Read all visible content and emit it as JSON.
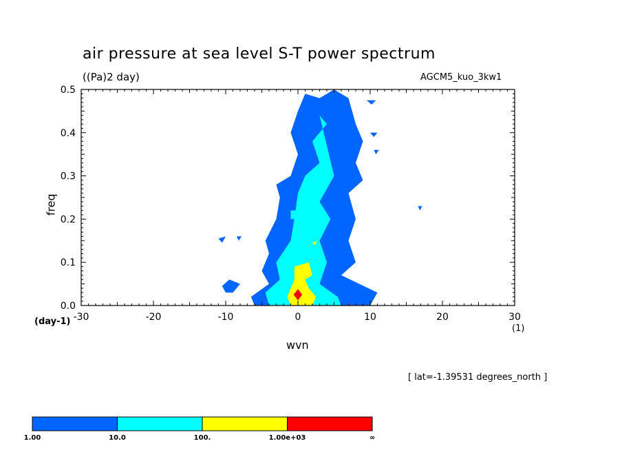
{
  "chart_data": {
    "type": "heatmap",
    "title": "air pressure at sea level S-T power spectrum",
    "subtitle": "((Pa)2 day)",
    "model_label": "AGCM5_kuo_3kw1",
    "xlabel": "wvn",
    "ylabel": "freq",
    "x_unit": "(1)",
    "y_unit": "(day-1)",
    "annotation": "[ lat=-1.39531 degrees_north ]",
    "xlim": [
      -30,
      30
    ],
    "ylim": [
      0,
      0.5
    ],
    "x_ticks": [
      -30,
      -20,
      -10,
      0,
      10,
      20,
      30
    ],
    "y_ticks": [
      0.0,
      0.1,
      0.2,
      0.3,
      0.4,
      0.5
    ],
    "x_tick_labels": [
      "-30",
      "-20",
      "-10",
      "0",
      "10",
      "20",
      "30"
    ],
    "y_tick_labels": [
      "0.0",
      "0.1",
      "0.2",
      "0.3",
      "0.4",
      "0.5"
    ],
    "levels": [
      {
        "label": "1.00",
        "color": "#0066ff"
      },
      {
        "label": "10.0",
        "color": "#00ffff"
      },
      {
        "label": "100.",
        "color": "#ffff00"
      },
      {
        "label": "1.00e+03",
        "color": "#ff0000"
      },
      {
        "label": "∞",
        "color": ""
      }
    ],
    "contours": [
      {
        "level": 0,
        "color": "#0066ff",
        "points": [
          [
            -6,
            0
          ],
          [
            -6.5,
            0.02
          ],
          [
            -4,
            0.05
          ],
          [
            -5,
            0.08
          ],
          [
            -4,
            0.12
          ],
          [
            -4.5,
            0.15
          ],
          [
            -3,
            0.2
          ],
          [
            -2.5,
            0.25
          ],
          [
            -3,
            0.28
          ],
          [
            -1,
            0.3
          ],
          [
            0,
            0.35
          ],
          [
            -1,
            0.4
          ],
          [
            0,
            0.45
          ],
          [
            1,
            0.49
          ],
          [
            3,
            0.48
          ],
          [
            5,
            0.5
          ],
          [
            7,
            0.48
          ],
          [
            8,
            0.42
          ],
          [
            9,
            0.38
          ],
          [
            8,
            0.33
          ],
          [
            9,
            0.29
          ],
          [
            7,
            0.26
          ],
          [
            8,
            0.2
          ],
          [
            7,
            0.15
          ],
          [
            8,
            0.1
          ],
          [
            6,
            0.07
          ],
          [
            11,
            0.03
          ],
          [
            10,
            0
          ]
        ]
      },
      {
        "level": 0,
        "color": "#0066ff",
        "points": [
          [
            -10.5,
            0.045
          ],
          [
            -9.5,
            0.06
          ],
          [
            -8,
            0.05
          ],
          [
            -9,
            0.03
          ],
          [
            -10,
            0.03
          ]
        ]
      },
      {
        "level": 0,
        "color": "#0066ff",
        "points": [
          [
            -11,
            0.155
          ],
          [
            -10,
            0.16
          ],
          [
            -10.5,
            0.145
          ]
        ]
      },
      {
        "level": 0,
        "color": "#0066ff",
        "points": [
          [
            -8.5,
            0.16
          ],
          [
            -7.8,
            0.16
          ],
          [
            -8.2,
            0.15
          ]
        ]
      },
      {
        "level": 0,
        "color": "#0066ff",
        "points": [
          [
            9.5,
            0.475
          ],
          [
            10.8,
            0.475
          ],
          [
            10.2,
            0.465
          ]
        ]
      },
      {
        "level": 0,
        "color": "#0066ff",
        "points": [
          [
            10,
            0.4
          ],
          [
            11,
            0.4
          ],
          [
            10.5,
            0.39
          ]
        ]
      },
      {
        "level": 0,
        "color": "#0066ff",
        "points": [
          [
            10.5,
            0.36
          ],
          [
            11.2,
            0.36
          ],
          [
            10.8,
            0.35
          ]
        ]
      },
      {
        "level": 0,
        "color": "#0066ff",
        "points": [
          [
            16.6,
            0.23
          ],
          [
            17.2,
            0.23
          ],
          [
            16.9,
            0.22
          ]
        ]
      },
      {
        "level": 1,
        "color": "#00ffff",
        "points": [
          [
            -4,
            0
          ],
          [
            -4.5,
            0.03
          ],
          [
            -2.5,
            0.06
          ],
          [
            -3,
            0.1
          ],
          [
            -1,
            0.15
          ],
          [
            -0.5,
            0.2
          ],
          [
            0,
            0.26
          ],
          [
            1,
            0.3
          ],
          [
            3,
            0.33
          ],
          [
            2,
            0.38
          ],
          [
            4,
            0.42
          ],
          [
            3,
            0.44
          ],
          [
            5,
            0.3
          ],
          [
            3,
            0.24
          ],
          [
            4.5,
            0.2
          ],
          [
            3,
            0.15
          ],
          [
            4,
            0.1
          ],
          [
            3,
            0.05
          ],
          [
            5.5,
            0.02
          ],
          [
            6,
            0
          ]
        ]
      },
      {
        "level": 1,
        "color": "#00ffff",
        "points": [
          [
            -1,
            0.2
          ],
          [
            0.5,
            0.2
          ],
          [
            0,
            0.22
          ],
          [
            -1,
            0.22
          ]
        ]
      },
      {
        "level": 2,
        "color": "#ffff00",
        "points": [
          [
            -1,
            0
          ],
          [
            -1.5,
            0.02
          ],
          [
            -1,
            0.04
          ],
          [
            -0.5,
            0.06
          ],
          [
            -0.5,
            0.09
          ],
          [
            1.5,
            0.1
          ],
          [
            2,
            0.07
          ],
          [
            1,
            0.06
          ],
          [
            1.5,
            0.04
          ],
          [
            2.5,
            0.02
          ],
          [
            2,
            0
          ]
        ]
      },
      {
        "level": 2,
        "color": "#ffff00",
        "points": [
          [
            2,
            0.145
          ],
          [
            2.7,
            0.15
          ],
          [
            2.3,
            0.14
          ]
        ]
      },
      {
        "level": 3,
        "color": "#ff0000",
        "points": [
          [
            -0.6,
            0.025
          ],
          [
            0,
            0.038
          ],
          [
            0.6,
            0.025
          ],
          [
            0,
            0.012
          ]
        ]
      }
    ]
  }
}
